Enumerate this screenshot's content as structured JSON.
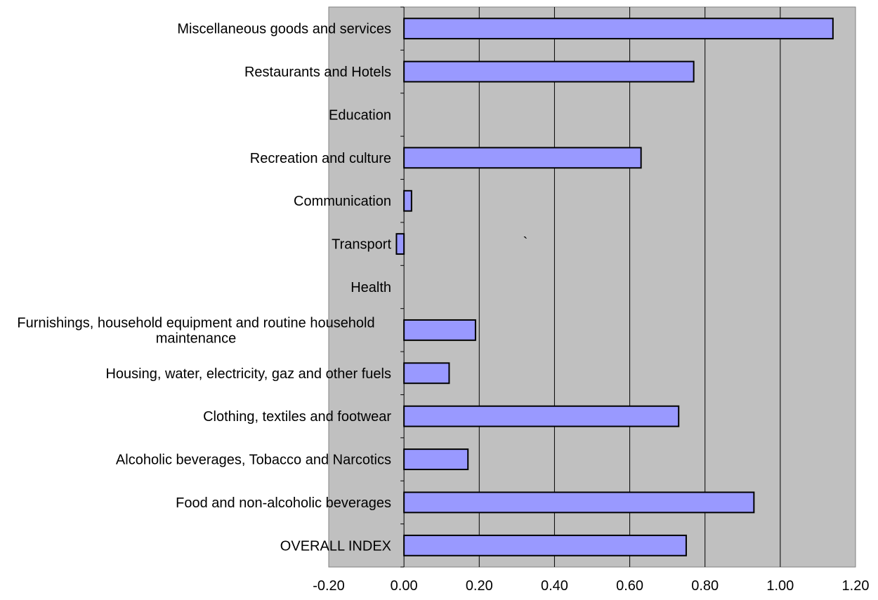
{
  "chart_data": {
    "type": "bar",
    "orientation": "horizontal",
    "categories": [
      "OVERALL INDEX",
      "Food and non-alcoholic beverages",
      "Alcoholic beverages, Tobacco and Narcotics",
      "Clothing, textiles and footwear",
      "Housing, water, electricity, gaz and other fuels",
      "Furnishings, household equipment and routine household maintenance",
      "Health",
      "Transport",
      "Communication",
      "Recreation and culture",
      "Education",
      "Restaurants and Hotels",
      "Miscellaneous goods and services"
    ],
    "category_label_lines": [
      [
        "OVERALL INDEX"
      ],
      [
        "Food and non-alcoholic beverages"
      ],
      [
        "Alcoholic beverages, Tobacco and Narcotics"
      ],
      [
        "Clothing, textiles and footwear"
      ],
      [
        "Housing, water, electricity, gaz and other fuels"
      ],
      [
        "Furnishings, household equipment and routine household",
        "maintenance"
      ],
      [
        "Health"
      ],
      [
        "Transport"
      ],
      [
        "Communication"
      ],
      [
        "Recreation and culture"
      ],
      [
        "Education"
      ],
      [
        "Restaurants and Hotels"
      ],
      [
        "Miscellaneous goods and services"
      ]
    ],
    "values": [
      0.75,
      0.93,
      0.17,
      0.73,
      0.12,
      0.19,
      null,
      -0.02,
      0.02,
      0.63,
      null,
      0.77,
      1.14
    ],
    "xlim": [
      -0.2,
      1.2
    ],
    "xticks": [
      -0.2,
      0.0,
      0.2,
      0.4,
      0.6,
      0.8,
      1.0,
      1.2
    ],
    "xtick_labels": [
      "-0.20",
      "0.00",
      "0.20",
      "0.40",
      "0.60",
      "0.80",
      "1.00",
      "1.20"
    ],
    "annotation": "`",
    "title": "",
    "xlabel": "",
    "ylabel": "",
    "grid": "vertical",
    "legend": "none",
    "colors": {
      "plot_background": "#c0c0c0",
      "bar_fill": "#9999ff",
      "bar_stroke": "#000000",
      "grid": "#000000",
      "frame": "#808080"
    }
  }
}
